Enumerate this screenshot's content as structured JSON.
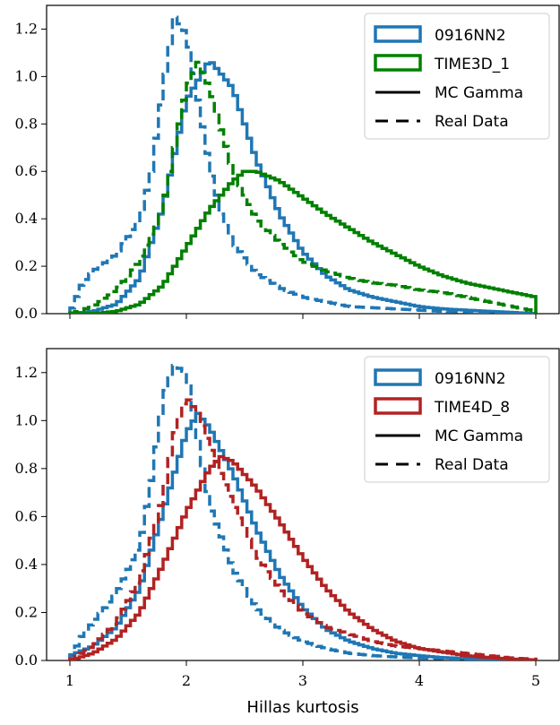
{
  "xlabel": "Hillas kurtosis",
  "chart_data": [
    {
      "type": "line",
      "title": "",
      "xlabel": "",
      "ylabel": "",
      "xlim": [
        0.8,
        5.2
      ],
      "ylim": [
        0,
        1.3
      ],
      "xticks": [
        1,
        2,
        3,
        4,
        5
      ],
      "yticks": [
        0.0,
        0.2,
        0.4,
        0.6,
        0.8,
        1.0,
        1.2
      ],
      "ytick_labels": [
        "0.0",
        "0.2",
        "0.4",
        "0.6",
        "0.8",
        "1.0",
        "1.2"
      ],
      "grid": false,
      "legend_position": "top-right",
      "legend": {
        "models": [
          {
            "label": "0916NN2",
            "color": "#1f77b4"
          },
          {
            "label": "TIME3D_1",
            "color": "#008000"
          }
        ],
        "styles": [
          {
            "label": "MC Gamma",
            "dash": "solid"
          },
          {
            "label": "Real Data",
            "dash": "dashed"
          }
        ]
      },
      "series": [
        {
          "model": "0916NN2",
          "style": "MC Gamma",
          "color": "#1f77b4",
          "dash": "solid",
          "x": [
            1.0,
            1.2,
            1.4,
            1.6,
            1.8,
            2.0,
            2.2,
            2.4,
            2.6,
            2.8,
            3.0,
            3.2,
            3.4,
            3.6,
            3.8,
            4.0,
            4.2,
            4.4,
            4.6,
            4.8,
            5.0
          ],
          "y": [
            0.0,
            0.01,
            0.04,
            0.15,
            0.45,
            0.9,
            1.07,
            0.95,
            0.65,
            0.42,
            0.26,
            0.16,
            0.1,
            0.07,
            0.05,
            0.03,
            0.02,
            0.015,
            0.01,
            0.005,
            0.0
          ]
        },
        {
          "model": "0916NN2",
          "style": "Real Data",
          "color": "#1f77b4",
          "dash": "dashed",
          "x": [
            1.0,
            1.1,
            1.2,
            1.4,
            1.6,
            1.7,
            1.8,
            1.9,
            2.0,
            2.1,
            2.2,
            2.3,
            2.4,
            2.6,
            2.8,
            3.0,
            3.2,
            3.4,
            3.6,
            3.8,
            4.0,
            4.2,
            4.4,
            4.6,
            4.8,
            5.0
          ],
          "y": [
            0.0,
            0.12,
            0.18,
            0.25,
            0.4,
            0.6,
            0.95,
            1.25,
            1.18,
            0.9,
            0.62,
            0.42,
            0.3,
            0.17,
            0.11,
            0.07,
            0.05,
            0.03,
            0.025,
            0.02,
            0.015,
            0.01,
            0.008,
            0.005,
            0.003,
            0.0
          ]
        },
        {
          "model": "TIME3D_1",
          "style": "MC Gamma",
          "color": "#008000",
          "dash": "solid",
          "x": [
            1.0,
            1.2,
            1.4,
            1.6,
            1.8,
            2.0,
            2.2,
            2.4,
            2.5,
            2.6,
            2.8,
            3.0,
            3.2,
            3.4,
            3.6,
            3.8,
            4.0,
            4.2,
            4.4,
            4.6,
            4.8,
            5.0
          ],
          "y": [
            0.0,
            0.0,
            0.01,
            0.04,
            0.12,
            0.28,
            0.44,
            0.56,
            0.6,
            0.6,
            0.56,
            0.49,
            0.42,
            0.36,
            0.3,
            0.25,
            0.2,
            0.16,
            0.13,
            0.11,
            0.09,
            0.07
          ]
        },
        {
          "model": "TIME3D_1",
          "style": "Real Data",
          "color": "#008000",
          "dash": "dashed",
          "x": [
            1.0,
            1.2,
            1.4,
            1.6,
            1.8,
            2.0,
            2.1,
            2.2,
            2.4,
            2.6,
            2.8,
            3.0,
            3.2,
            3.4,
            3.6,
            3.8,
            4.0,
            4.2,
            4.4,
            4.6,
            4.8,
            5.0
          ],
          "y": [
            0.0,
            0.03,
            0.1,
            0.22,
            0.45,
            0.95,
            1.06,
            0.95,
            0.6,
            0.4,
            0.3,
            0.22,
            0.18,
            0.15,
            0.13,
            0.12,
            0.1,
            0.09,
            0.07,
            0.05,
            0.03,
            0.01
          ]
        }
      ]
    },
    {
      "type": "line",
      "title": "",
      "xlabel": "Hillas kurtosis",
      "ylabel": "",
      "xlim": [
        0.8,
        5.2
      ],
      "ylim": [
        0,
        1.3
      ],
      "xticks": [
        1,
        2,
        3,
        4,
        5
      ],
      "xtick_labels": [
        "1",
        "2",
        "3",
        "4",
        "5"
      ],
      "yticks": [
        0.0,
        0.2,
        0.4,
        0.6,
        0.8,
        1.0,
        1.2
      ],
      "ytick_labels": [
        "0.0",
        "0.2",
        "0.4",
        "0.6",
        "0.8",
        "1.0",
        "1.2"
      ],
      "grid": false,
      "legend_position": "top-right",
      "legend": {
        "models": [
          {
            "label": "0916NN2",
            "color": "#1f77b4"
          },
          {
            "label": "TIME4D_8",
            "color": "#b22222"
          }
        ],
        "styles": [
          {
            "label": "MC Gamma",
            "dash": "solid"
          },
          {
            "label": "Real Data",
            "dash": "dashed"
          }
        ]
      },
      "series": [
        {
          "model": "0916NN2",
          "style": "MC Gamma",
          "color": "#1f77b4",
          "dash": "solid",
          "x": [
            1.0,
            1.2,
            1.4,
            1.6,
            1.8,
            2.0,
            2.1,
            2.2,
            2.4,
            2.6,
            2.8,
            3.0,
            3.2,
            3.4,
            3.6,
            3.8,
            4.0,
            4.2,
            4.4,
            4.6,
            4.8,
            5.0
          ],
          "y": [
            0.02,
            0.06,
            0.14,
            0.3,
            0.62,
            0.95,
            1.03,
            0.97,
            0.78,
            0.55,
            0.36,
            0.22,
            0.13,
            0.08,
            0.05,
            0.03,
            0.02,
            0.012,
            0.008,
            0.005,
            0.003,
            0.0
          ]
        },
        {
          "model": "0916NN2",
          "style": "Real Data",
          "color": "#1f77b4",
          "dash": "dashed",
          "x": [
            1.0,
            1.1,
            1.2,
            1.4,
            1.6,
            1.7,
            1.8,
            1.9,
            2.0,
            2.1,
            2.2,
            2.4,
            2.6,
            2.8,
            3.0,
            3.2,
            3.4,
            3.6,
            3.8,
            4.0,
            4.2,
            4.4,
            4.6,
            4.8,
            5.0
          ],
          "y": [
            0.0,
            0.1,
            0.16,
            0.28,
            0.48,
            0.75,
            1.1,
            1.23,
            1.2,
            0.92,
            0.65,
            0.38,
            0.22,
            0.13,
            0.08,
            0.05,
            0.03,
            0.02,
            0.015,
            0.01,
            0.008,
            0.005,
            0.003,
            0.002,
            0.0
          ]
        },
        {
          "model": "TIME4D_8",
          "style": "MC Gamma",
          "color": "#b22222",
          "dash": "solid",
          "x": [
            1.0,
            1.2,
            1.4,
            1.6,
            1.8,
            2.0,
            2.2,
            2.3,
            2.4,
            2.6,
            2.8,
            3.0,
            3.2,
            3.4,
            3.6,
            3.8,
            4.0,
            4.2,
            4.4,
            4.6,
            4.8,
            5.0
          ],
          "y": [
            0.0,
            0.03,
            0.09,
            0.2,
            0.4,
            0.62,
            0.8,
            0.85,
            0.83,
            0.72,
            0.58,
            0.43,
            0.3,
            0.2,
            0.13,
            0.08,
            0.05,
            0.035,
            0.02,
            0.012,
            0.006,
            0.002
          ]
        },
        {
          "model": "TIME4D_8",
          "style": "Real Data",
          "color": "#b22222",
          "dash": "dashed",
          "x": [
            1.0,
            1.2,
            1.4,
            1.6,
            1.8,
            1.9,
            2.0,
            2.1,
            2.2,
            2.4,
            2.6,
            2.8,
            3.0,
            3.2,
            3.4,
            3.6,
            3.8,
            4.0,
            4.2,
            4.4,
            4.6,
            4.8,
            5.0
          ],
          "y": [
            0.0,
            0.06,
            0.16,
            0.34,
            0.68,
            0.95,
            1.1,
            1.03,
            0.9,
            0.66,
            0.44,
            0.3,
            0.2,
            0.14,
            0.11,
            0.08,
            0.06,
            0.05,
            0.04,
            0.03,
            0.02,
            0.01,
            0.005
          ]
        }
      ]
    }
  ]
}
